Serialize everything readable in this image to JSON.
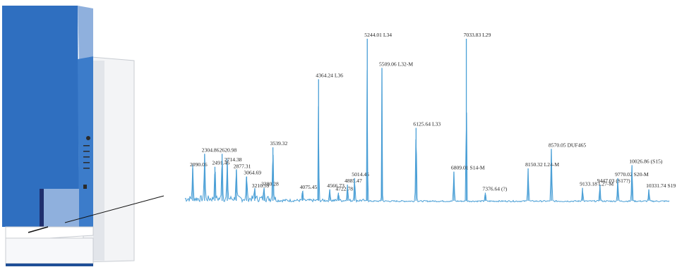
{
  "colors": {
    "instrument_blue": "#2f6fc0",
    "instrument_blue_dark": "#1f4f97",
    "instrument_blue_light": "#8fb0dd",
    "spectrum_line": "#4a9fd6",
    "label_text": "#222222",
    "connector": "#111111"
  },
  "illustration": {
    "type": "mass-spectrometer-instrument"
  },
  "chart_data": {
    "type": "line",
    "title": "",
    "xlabel": "",
    "ylabel": "",
    "xlim": [
      1950,
      10700
    ],
    "ylim": [
      0,
      100
    ],
    "grid": false,
    "legend": "none",
    "peaks": [
      {
        "x": 2090.06,
        "y": 20,
        "label": "2090.06"
      },
      {
        "x": 2304.86,
        "y": 29,
        "label": "2304.86"
      },
      {
        "x": 2491.46,
        "y": 21,
        "label": "2491.46"
      },
      {
        "x": 2620.98,
        "y": 29,
        "label": "2620.98"
      },
      {
        "x": 2714.38,
        "y": 23,
        "label": "2714.38"
      },
      {
        "x": 2877.31,
        "y": 19,
        "label": "2877.31"
      },
      {
        "x": 3064.69,
        "y": 15,
        "label": "3064.69"
      },
      {
        "x": 3210.59,
        "y": 7,
        "label": "3210.59"
      },
      {
        "x": 3380.28,
        "y": 8,
        "label": "3380.28"
      },
      {
        "x": 3539.32,
        "y": 33,
        "label": "3539.32"
      },
      {
        "x": 4075.45,
        "y": 6,
        "label": "4075.45"
      },
      {
        "x": 4364.24,
        "y": 75,
        "label": "4364.24 L36"
      },
      {
        "x": 4566.73,
        "y": 7,
        "label": "4566.73"
      },
      {
        "x": 4722.78,
        "y": 5,
        "label": "4722.78"
      },
      {
        "x": 4885.47,
        "y": 10,
        "label": "4885.47"
      },
      {
        "x": 5014.45,
        "y": 14,
        "label": "5014.45"
      },
      {
        "x": 5244.01,
        "y": 100,
        "label": "5244.01 L34"
      },
      {
        "x": 5509.06,
        "y": 82,
        "label": "5509.06 L32-M"
      },
      {
        "x": 6125.64,
        "y": 45,
        "label": "6125.64 L33"
      },
      {
        "x": 6809.01,
        "y": 18,
        "label": "6809.01 S14-M"
      },
      {
        "x": 7033.83,
        "y": 100,
        "label": "7033.83 L29"
      },
      {
        "x": 7376.64,
        "y": 5,
        "label": "7376.64 (?)"
      },
      {
        "x": 8150.32,
        "y": 20,
        "label": "8150.32 L24-M"
      },
      {
        "x": 8570.05,
        "y": 32,
        "label": "8570.05 DUF465"
      },
      {
        "x": 9133.18,
        "y": 8,
        "label": "9133.18 L27-M"
      },
      {
        "x": 9447.03,
        "y": 10,
        "label": "9447.03 (S17?)"
      },
      {
        "x": 9770.02,
        "y": 14,
        "label": "9770.02 S20-M"
      },
      {
        "x": 10026.86,
        "y": 22,
        "label": "10026.86 (S15)"
      },
      {
        "x": 10331.74,
        "y": 7,
        "label": "10331.74 S19"
      }
    ]
  }
}
